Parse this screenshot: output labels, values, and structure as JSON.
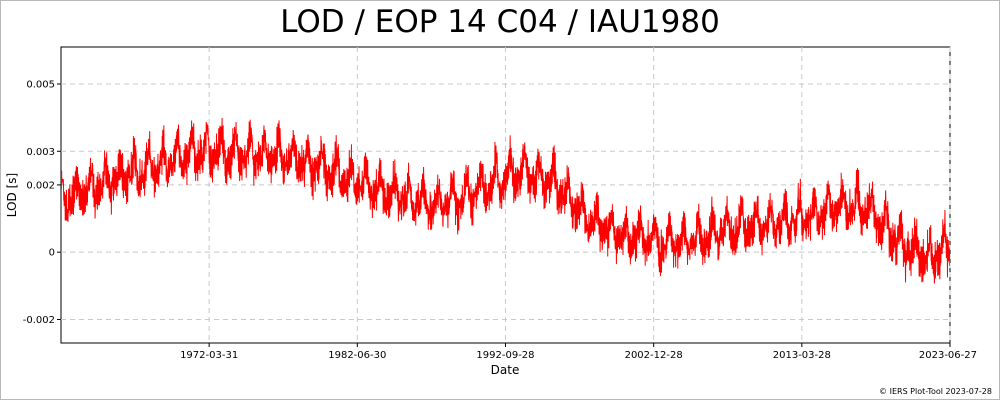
{
  "chart_data": {
    "type": "line",
    "title": "LOD / EOP 14 C04 / IAU1980",
    "xlabel": "Date",
    "ylabel": "LOD [s]",
    "x_tick_labels": [
      "1972-03-31",
      "1982-06-30",
      "1992-09-28",
      "2002-12-28",
      "2013-03-28",
      "2023-06-27"
    ],
    "y_tick_labels": [
      "0.005",
      "0.003",
      "0.002",
      "0",
      "-0.002"
    ],
    "y_ticks": [
      0.005,
      0.003,
      0.002,
      0,
      -0.002
    ],
    "xlim": [
      "1962-01-01",
      "2023-06-27"
    ],
    "ylim": [
      -0.0027,
      0.0061
    ],
    "grid": true,
    "series": [
      {
        "color": "#ff0000",
        "x_dates": [
          "1962-01-01",
          "1964-01-01",
          "1966-01-01",
          "1968-01-01",
          "1970-01-01",
          "1972-01-01",
          "1974-01-01",
          "1976-01-01",
          "1978-01-01",
          "1980-01-01",
          "1982-01-01",
          "1984-01-01",
          "1986-01-01",
          "1988-01-01",
          "1990-01-01",
          "1992-01-01",
          "1994-01-01",
          "1996-01-01",
          "1998-01-01",
          "2000-01-01",
          "2002-01-01",
          "2004-01-01",
          "2006-01-01",
          "2008-01-01",
          "2010-01-01",
          "2012-01-01",
          "2014-01-01",
          "2016-01-01",
          "2018-01-01",
          "2020-01-01",
          "2022-01-01",
          "2023-06-27"
        ],
        "values": [
          0.0015,
          0.0019,
          0.0022,
          0.0025,
          0.0028,
          0.003,
          0.003,
          0.0029,
          0.0028,
          0.0026,
          0.0021,
          0.0019,
          0.0016,
          0.0014,
          0.0017,
          0.0021,
          0.0024,
          0.0021,
          0.0011,
          0.0006,
          0.0004,
          0.0003,
          0.0004,
          0.0007,
          0.0008,
          0.0009,
          0.0011,
          0.0014,
          0.0013,
          0.0003,
          -0.0002,
          0.0002
        ]
      }
    ]
  },
  "credit": "© IERS Plot-Tool 2023-07-28"
}
